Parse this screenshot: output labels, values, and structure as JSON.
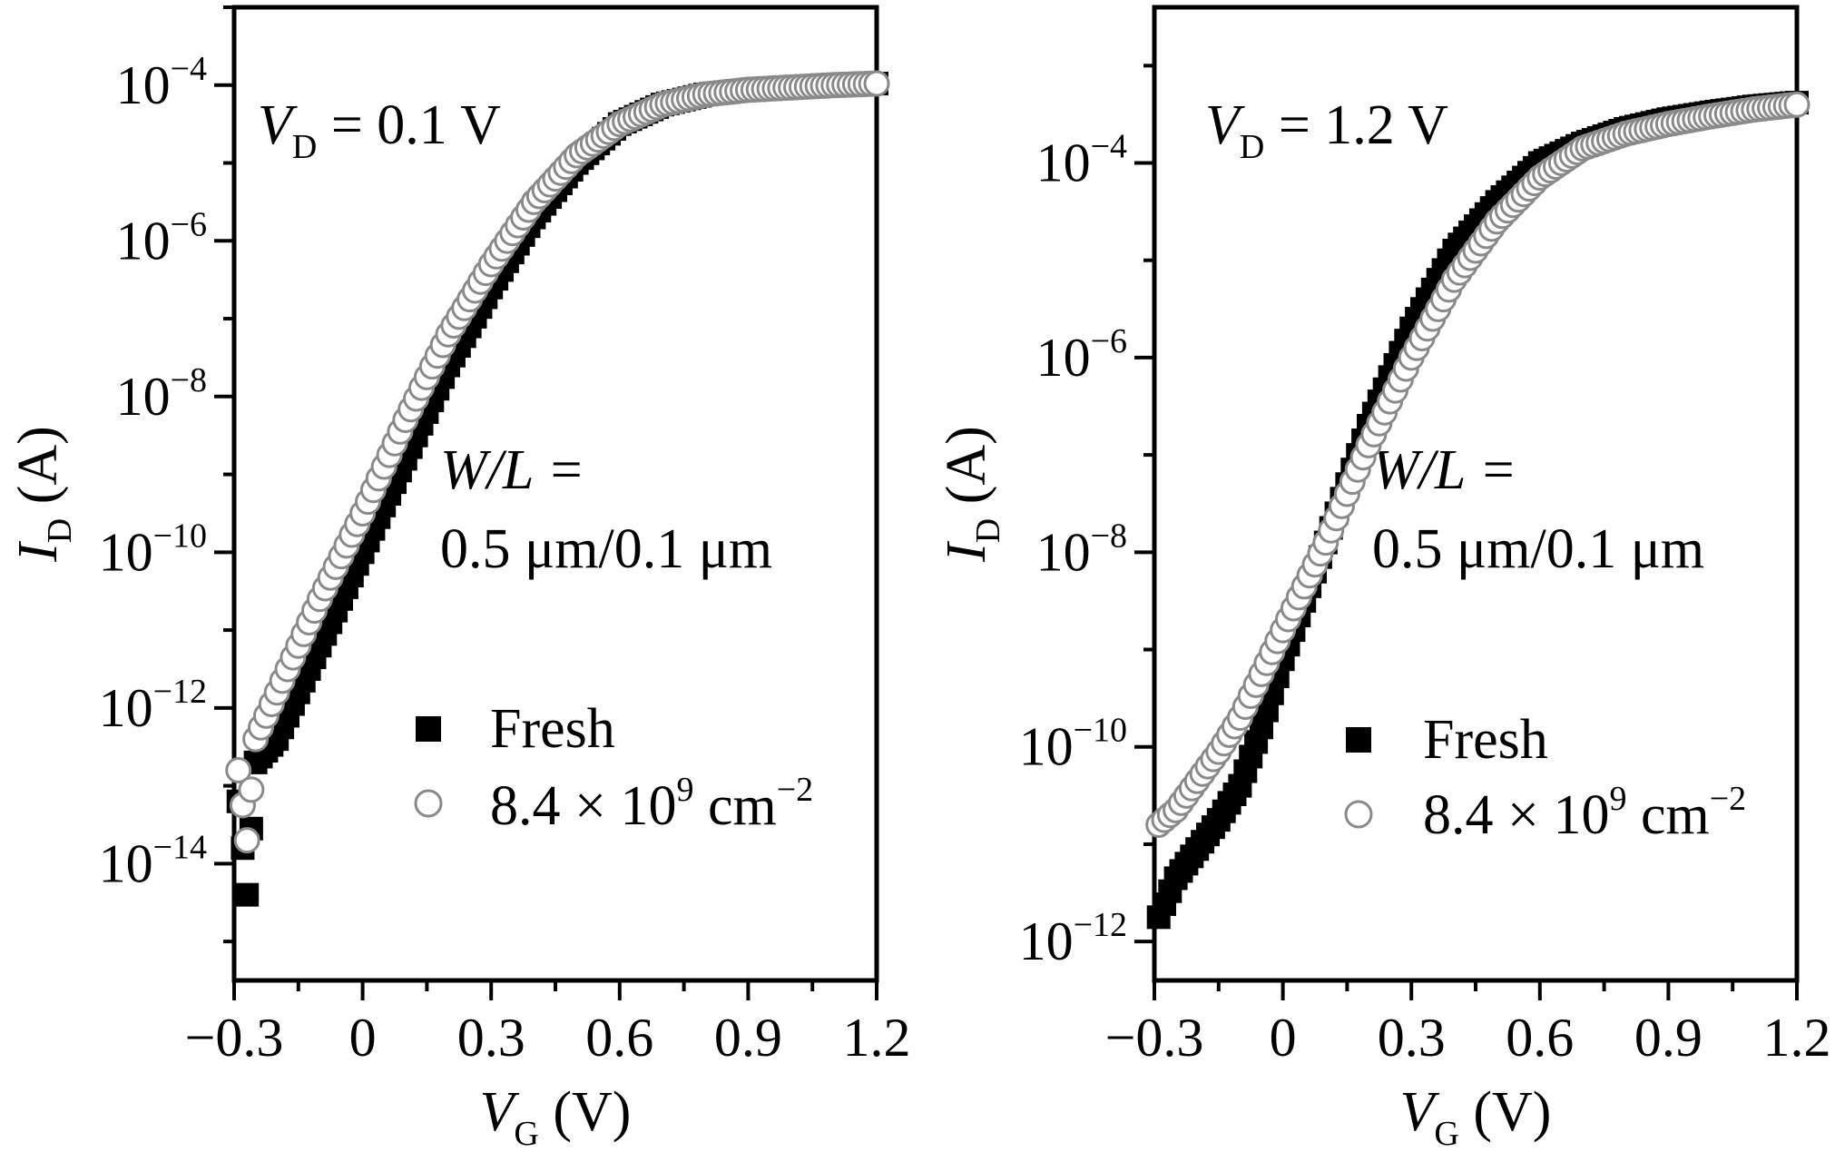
{
  "chart_data": [
    {
      "type": "scatter",
      "annotation": {
        "vd_var": "V",
        "vd_sub": "D",
        "vd_text": " = 0.1 V",
        "wl_var": "W/L =",
        "wl_value": "0.5 μm/0.1 μm"
      },
      "xlabel": {
        "var": "V",
        "sub": "G",
        "unit": " (V)"
      },
      "ylabel": {
        "var": "I",
        "sub": "D",
        "unit": " (A)"
      },
      "y_scale": "log",
      "xlim": [
        -0.3,
        1.2
      ],
      "ylim_exp": [
        -15.5,
        -3
      ],
      "xticks": [
        {
          "v": -0.3,
          "label": "−0.3"
        },
        {
          "v": 0,
          "label": "0"
        },
        {
          "v": 0.3,
          "label": "0.3"
        },
        {
          "v": 0.6,
          "label": "0.6"
        },
        {
          "v": 0.9,
          "label": "0.9"
        },
        {
          "v": 1.2,
          "label": "1.2"
        }
      ],
      "yticks": [
        {
          "exp": -4,
          "base": "10",
          "sup": "−4"
        },
        {
          "exp": -6,
          "base": "10",
          "sup": "−6"
        },
        {
          "exp": -8,
          "base": "10",
          "sup": "−8"
        },
        {
          "exp": -10,
          "base": "10",
          "sup": "−10"
        },
        {
          "exp": -12,
          "base": "10",
          "sup": "−12"
        },
        {
          "exp": -14,
          "base": "10",
          "sup": "−14"
        }
      ],
      "legend": {
        "placement": "lower-right",
        "items": [
          {
            "marker": "filled-square",
            "label": "Fresh"
          },
          {
            "marker": "open-circle",
            "label_base": "8.4 × 10",
            "label_sup": "9",
            "label_tail": " cm",
            "label_sup2": "−2"
          }
        ]
      },
      "series": [
        {
          "name": "Fresh",
          "marker": "filled-square",
          "x": [
            -0.29,
            -0.27,
            -0.25,
            -0.2,
            -0.1,
            0.0,
            0.1,
            0.2,
            0.3,
            0.4,
            0.5,
            0.6,
            0.7,
            0.8,
            0.9,
            1.0,
            1.1,
            1.2
          ],
          "log10_y": [
            -13.2,
            -14.4,
            -12.7,
            -12.4,
            -11.2,
            -10.0,
            -8.8,
            -7.6,
            -6.6,
            -5.7,
            -5.0,
            -4.5,
            -4.25,
            -4.12,
            -4.06,
            -4.03,
            -4.0,
            -3.98
          ]
        },
        {
          "name": "8.4 × 10⁹ cm⁻²",
          "marker": "open-circle",
          "x": [
            -0.29,
            -0.27,
            -0.25,
            -0.2,
            -0.1,
            0.0,
            0.1,
            0.2,
            0.3,
            0.4,
            0.5,
            0.6,
            0.7,
            0.8,
            0.9,
            1.0,
            1.1,
            1.2
          ],
          "log10_y": [
            -12.8,
            -13.7,
            -12.4,
            -11.8,
            -10.6,
            -9.5,
            -8.3,
            -7.2,
            -6.3,
            -5.5,
            -4.9,
            -4.5,
            -4.25,
            -4.12,
            -4.06,
            -4.03,
            -4.0,
            -3.98
          ]
        }
      ]
    },
    {
      "type": "scatter",
      "annotation": {
        "vd_var": "V",
        "vd_sub": "D",
        "vd_text": " = 1.2 V",
        "wl_var": "W/L =",
        "wl_value": "0.5 μm/0.1 μm"
      },
      "xlabel": {
        "var": "V",
        "sub": "G",
        "unit": " (V)"
      },
      "ylabel": {
        "var": "I",
        "sub": "D",
        "unit": " (A)"
      },
      "y_scale": "log",
      "xlim": [
        -0.3,
        1.2
      ],
      "ylim_exp": [
        -12.4,
        -2.4
      ],
      "xticks": [
        {
          "v": -0.3,
          "label": "−0.3"
        },
        {
          "v": 0,
          "label": "0"
        },
        {
          "v": 0.3,
          "label": "0.3"
        },
        {
          "v": 0.6,
          "label": "0.6"
        },
        {
          "v": 0.9,
          "label": "0.9"
        },
        {
          "v": 1.2,
          "label": "1.2"
        }
      ],
      "yticks": [
        {
          "exp": -4,
          "base": "10",
          "sup": "−4"
        },
        {
          "exp": -6,
          "base": "10",
          "sup": "−6"
        },
        {
          "exp": -8,
          "base": "10",
          "sup": "−8"
        },
        {
          "exp": -10,
          "base": "10",
          "sup": "−10"
        },
        {
          "exp": -12,
          "base": "10",
          "sup": "−12"
        }
      ],
      "legend": {
        "placement": "lower-right",
        "items": [
          {
            "marker": "filled-square",
            "label": "Fresh"
          },
          {
            "marker": "open-circle",
            "label_base": "8.4 × 10",
            "label_sup": "9",
            "label_tail": " cm",
            "label_sup2": "−2"
          }
        ]
      },
      "series": [
        {
          "name": "Fresh",
          "marker": "filled-square",
          "x": [
            -0.29,
            -0.25,
            -0.2,
            -0.15,
            -0.1,
            -0.05,
            0.0,
            0.1,
            0.2,
            0.3,
            0.4,
            0.5,
            0.6,
            0.7,
            0.8,
            0.9,
            1.0,
            1.1,
            1.2
          ],
          "log10_y": [
            -11.75,
            -11.35,
            -11.05,
            -10.75,
            -10.4,
            -9.8,
            -9.1,
            -7.9,
            -6.7,
            -5.7,
            -4.9,
            -4.4,
            -4.0,
            -3.8,
            -3.65,
            -3.55,
            -3.48,
            -3.42,
            -3.38
          ]
        },
        {
          "name": "8.4 × 10⁹ cm⁻²",
          "marker": "open-circle",
          "x": [
            -0.29,
            -0.25,
            -0.2,
            -0.15,
            -0.1,
            -0.05,
            0.0,
            0.1,
            0.2,
            0.3,
            0.4,
            0.5,
            0.6,
            0.7,
            0.8,
            0.9,
            1.0,
            1.1,
            1.2
          ],
          "log10_y": [
            -10.8,
            -10.65,
            -10.35,
            -10.05,
            -9.7,
            -9.25,
            -8.8,
            -7.9,
            -6.9,
            -6.0,
            -5.2,
            -4.6,
            -4.15,
            -3.85,
            -3.7,
            -3.6,
            -3.52,
            -3.45,
            -3.4
          ]
        }
      ]
    }
  ]
}
